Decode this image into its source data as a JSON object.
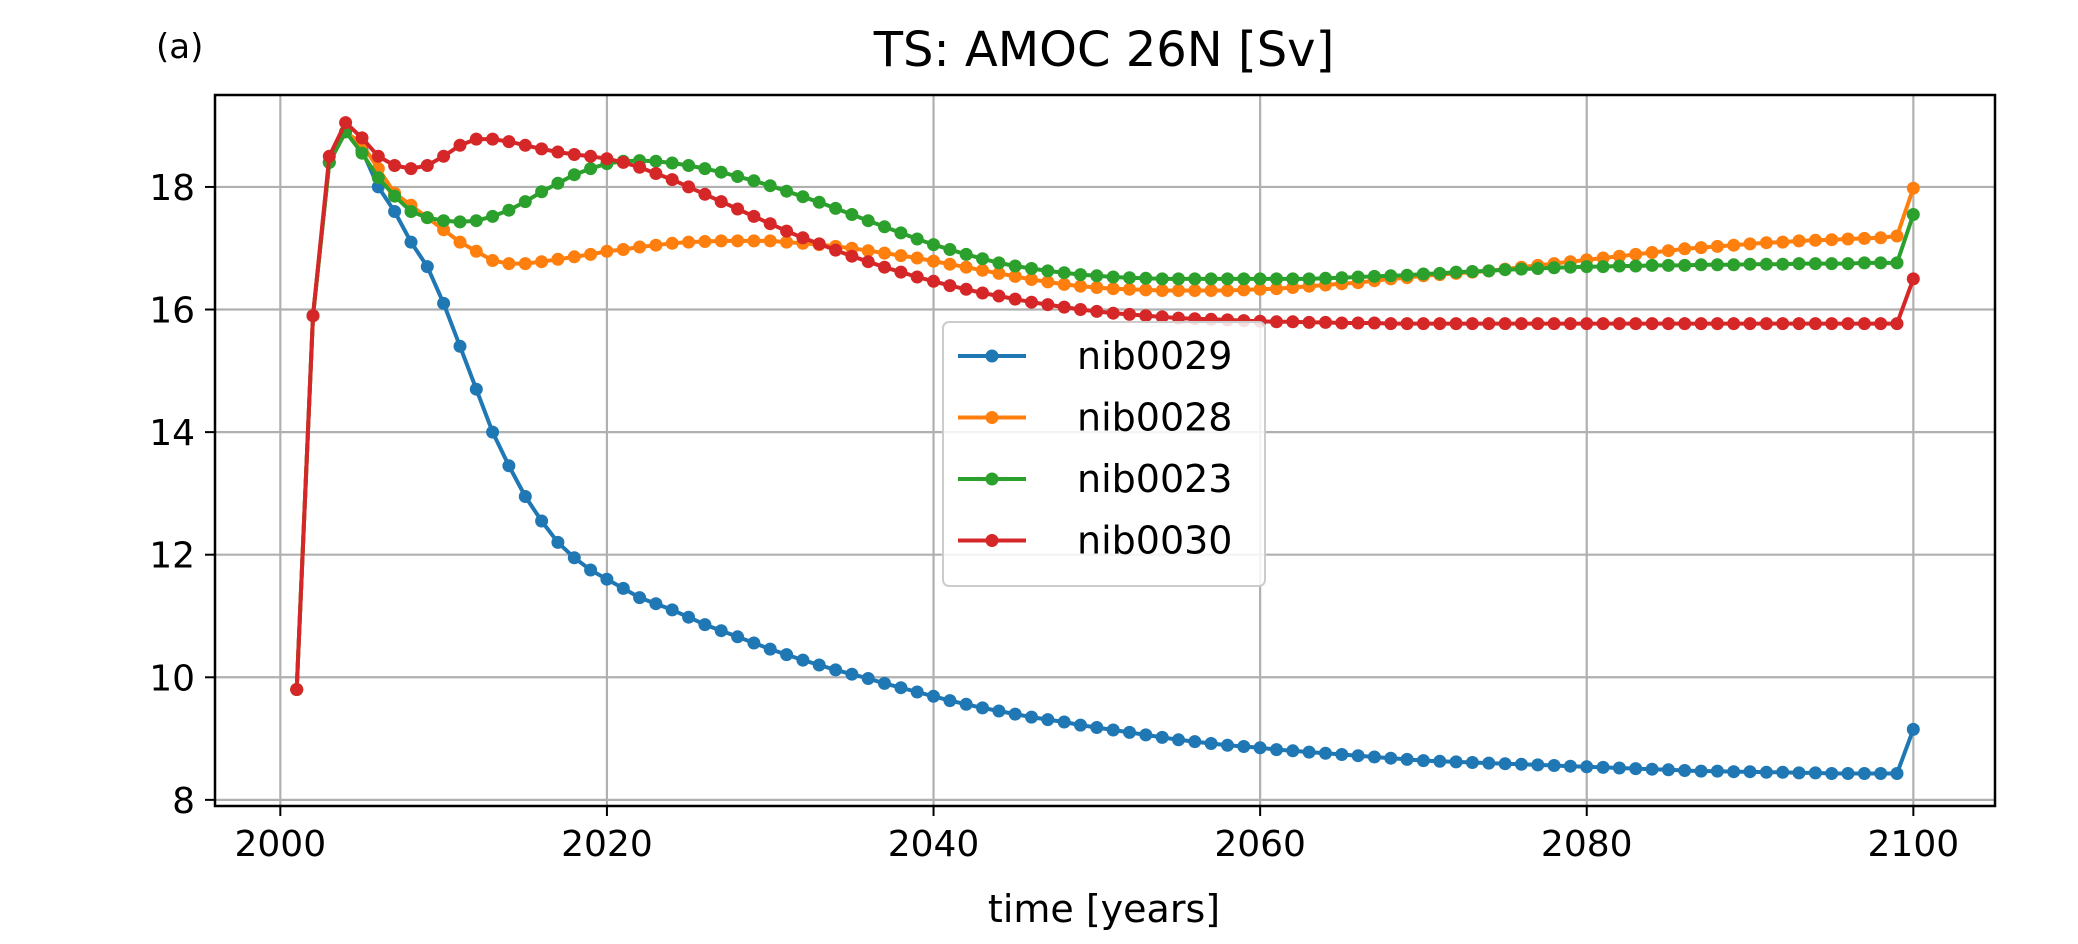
{
  "chart_data": {
    "type": "line",
    "panel_label": "(a)",
    "title": "TS: AMOC 26N [Sv]",
    "xlabel": "time [years]",
    "ylabel": "",
    "xlim": [
      1996,
      2105
    ],
    "ylim": [
      7.9,
      19.5
    ],
    "xticks": [
      2000,
      2020,
      2040,
      2060,
      2080,
      2100
    ],
    "yticks": [
      8,
      10,
      12,
      14,
      16,
      18
    ],
    "grid": true,
    "legend_position": "center",
    "x_start": 2001,
    "x_step": 1,
    "series": [
      {
        "name": "nib0029",
        "color": "#1f77b4",
        "values": [
          9.8,
          15.9,
          18.4,
          18.9,
          18.6,
          18.0,
          17.6,
          17.1,
          16.7,
          16.1,
          15.4,
          14.7,
          14.0,
          13.45,
          12.95,
          12.55,
          12.2,
          11.95,
          11.75,
          11.6,
          11.45,
          11.3,
          11.2,
          11.1,
          10.98,
          10.86,
          10.76,
          10.66,
          10.56,
          10.46,
          10.37,
          10.28,
          10.2,
          10.12,
          10.05,
          9.98,
          9.9,
          9.83,
          9.76,
          9.69,
          9.62,
          9.56,
          9.5,
          9.45,
          9.4,
          9.35,
          9.31,
          9.27,
          9.22,
          9.18,
          9.14,
          9.1,
          9.06,
          9.02,
          8.98,
          8.95,
          8.92,
          8.89,
          8.87,
          8.85,
          8.82,
          8.8,
          8.78,
          8.76,
          8.74,
          8.72,
          8.7,
          8.68,
          8.66,
          8.64,
          8.63,
          8.62,
          8.61,
          8.6,
          8.59,
          8.58,
          8.57,
          8.56,
          8.55,
          8.54,
          8.53,
          8.52,
          8.51,
          8.5,
          8.49,
          8.48,
          8.47,
          8.47,
          8.46,
          8.46,
          8.45,
          8.45,
          8.44,
          8.44,
          8.43,
          8.43,
          8.43,
          8.43,
          8.43,
          9.15
        ]
      },
      {
        "name": "nib0028",
        "color": "#ff7f0e",
        "values": [
          9.8,
          15.9,
          18.4,
          18.9,
          18.7,
          18.3,
          17.9,
          17.7,
          17.5,
          17.3,
          17.1,
          16.95,
          16.8,
          16.75,
          16.75,
          16.78,
          16.82,
          16.86,
          16.9,
          16.95,
          16.98,
          17.02,
          17.05,
          17.08,
          17.1,
          17.11,
          17.12,
          17.12,
          17.12,
          17.12,
          17.1,
          17.08,
          17.06,
          17.03,
          17.0,
          16.96,
          16.92,
          16.88,
          16.84,
          16.79,
          16.74,
          16.69,
          16.64,
          16.59,
          16.54,
          16.49,
          16.45,
          16.41,
          16.38,
          16.36,
          16.34,
          16.33,
          16.32,
          16.31,
          16.31,
          16.31,
          16.31,
          16.31,
          16.32,
          16.33,
          16.34,
          16.36,
          16.38,
          16.4,
          16.42,
          16.44,
          16.47,
          16.5,
          16.52,
          16.55,
          16.57,
          16.59,
          16.61,
          16.63,
          16.66,
          16.69,
          16.72,
          16.75,
          16.78,
          16.81,
          16.84,
          16.87,
          16.9,
          16.93,
          16.96,
          16.99,
          17.01,
          17.03,
          17.05,
          17.07,
          17.09,
          17.1,
          17.12,
          17.13,
          17.14,
          17.15,
          17.16,
          17.17,
          17.2,
          17.98
        ]
      },
      {
        "name": "nib0023",
        "color": "#2ca02c",
        "values": [
          9.8,
          15.9,
          18.4,
          18.9,
          18.55,
          18.15,
          17.85,
          17.6,
          17.5,
          17.45,
          17.43,
          17.45,
          17.52,
          17.62,
          17.76,
          17.92,
          18.06,
          18.2,
          18.3,
          18.38,
          18.42,
          18.43,
          18.42,
          18.39,
          18.35,
          18.3,
          18.24,
          18.17,
          18.1,
          18.02,
          17.93,
          17.84,
          17.75,
          17.65,
          17.55,
          17.45,
          17.35,
          17.25,
          17.15,
          17.06,
          16.98,
          16.9,
          16.83,
          16.76,
          16.71,
          16.67,
          16.63,
          16.6,
          16.57,
          16.55,
          16.53,
          16.52,
          16.51,
          16.5,
          16.5,
          16.5,
          16.5,
          16.5,
          16.5,
          16.5,
          16.5,
          16.5,
          16.5,
          16.51,
          16.52,
          16.53,
          16.54,
          16.55,
          16.56,
          16.58,
          16.59,
          16.61,
          16.62,
          16.63,
          16.65,
          16.66,
          16.67,
          16.68,
          16.69,
          16.7,
          16.7,
          16.71,
          16.71,
          16.72,
          16.72,
          16.72,
          16.73,
          16.73,
          16.73,
          16.74,
          16.74,
          16.74,
          16.75,
          16.75,
          16.75,
          16.75,
          16.76,
          16.76,
          16.76,
          17.55
        ]
      },
      {
        "name": "nib0030",
        "color": "#d62728",
        "values": [
          9.8,
          15.9,
          18.5,
          19.05,
          18.8,
          18.5,
          18.35,
          18.3,
          18.35,
          18.5,
          18.68,
          18.78,
          18.78,
          18.74,
          18.68,
          18.62,
          18.57,
          18.53,
          18.5,
          18.46,
          18.4,
          18.32,
          18.22,
          18.12,
          18.0,
          17.88,
          17.76,
          17.64,
          17.52,
          17.4,
          17.28,
          17.17,
          17.07,
          16.97,
          16.87,
          16.78,
          16.69,
          16.61,
          16.53,
          16.46,
          16.39,
          16.33,
          16.27,
          16.22,
          16.17,
          16.12,
          16.08,
          16.04,
          16.0,
          15.97,
          15.94,
          15.92,
          15.9,
          15.88,
          15.86,
          15.85,
          15.84,
          15.83,
          15.82,
          15.81,
          15.8,
          15.8,
          15.79,
          15.79,
          15.78,
          15.78,
          15.78,
          15.77,
          15.77,
          15.77,
          15.77,
          15.77,
          15.77,
          15.77,
          15.77,
          15.77,
          15.77,
          15.77,
          15.77,
          15.77,
          15.77,
          15.77,
          15.77,
          15.77,
          15.77,
          15.77,
          15.77,
          15.77,
          15.77,
          15.77,
          15.77,
          15.77,
          15.77,
          15.77,
          15.77,
          15.77,
          15.77,
          15.77,
          15.77,
          16.5
        ]
      }
    ]
  }
}
